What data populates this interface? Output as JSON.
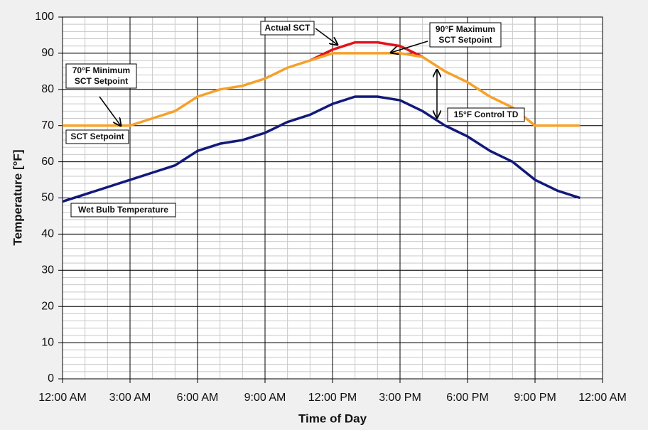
{
  "chart_data": {
    "type": "line",
    "x_label": "Time of Day",
    "y_label": "Temperature [°F]",
    "x": [
      0,
      1,
      2,
      3,
      4,
      5,
      6,
      7,
      8,
      9,
      10,
      11,
      12,
      13,
      14,
      15,
      16,
      17,
      18,
      19,
      20,
      21,
      22,
      23
    ],
    "series": [
      {
        "name": "Actual SCT",
        "color": "#e3131b",
        "values": [
          null,
          null,
          null,
          null,
          null,
          null,
          null,
          null,
          null,
          null,
          null,
          88,
          91,
          93,
          93,
          92,
          89,
          null,
          null,
          null,
          null,
          null,
          null,
          null
        ]
      },
      {
        "name": "SCT Setpoint",
        "color": "#f5a12a",
        "values": [
          70,
          70,
          70,
          70,
          72,
          74,
          78,
          80,
          81,
          83,
          86,
          88,
          90,
          90,
          90,
          90,
          89,
          85,
          82,
          78,
          75,
          70,
          70,
          70
        ]
      },
      {
        "name": "Wet Bulb Temperature",
        "color": "#12197a",
        "values": [
          49,
          51,
          53,
          55,
          57,
          59,
          63,
          65,
          66,
          68,
          71,
          73,
          76,
          78,
          78,
          77,
          74,
          70,
          67,
          63,
          60,
          55,
          52,
          50
        ]
      }
    ],
    "xlim": [
      0,
      24
    ],
    "xticks": [
      {
        "value": 0,
        "label": "12:00 AM"
      },
      {
        "value": 3,
        "label": "3:00 AM"
      },
      {
        "value": 6,
        "label": "6:00 AM"
      },
      {
        "value": 9,
        "label": "9:00 AM"
      },
      {
        "value": 12,
        "label": "12:00 PM"
      },
      {
        "value": 15,
        "label": "3:00 PM"
      },
      {
        "value": 18,
        "label": "6:00 PM"
      },
      {
        "value": 21,
        "label": "9:00 PM"
      },
      {
        "value": 24,
        "label": "12:00 AM"
      }
    ],
    "ylim": [
      0,
      100
    ],
    "yticks": [
      0,
      10,
      20,
      30,
      40,
      50,
      60,
      70,
      80,
      90,
      100
    ],
    "grid": true,
    "annotations": [
      {
        "lines": [
          "Actual SCT"
        ]
      },
      {
        "lines": [
          "90°F Maximum",
          "SCT Setpoint"
        ]
      },
      {
        "lines": [
          "70°F Minimum",
          "SCT Setpoint"
        ]
      },
      {
        "lines": [
          "SCT Setpoint"
        ]
      },
      {
        "lines": [
          "15°F Control TD"
        ]
      },
      {
        "lines": [
          "Wet Bulb Temperature"
        ]
      }
    ]
  }
}
